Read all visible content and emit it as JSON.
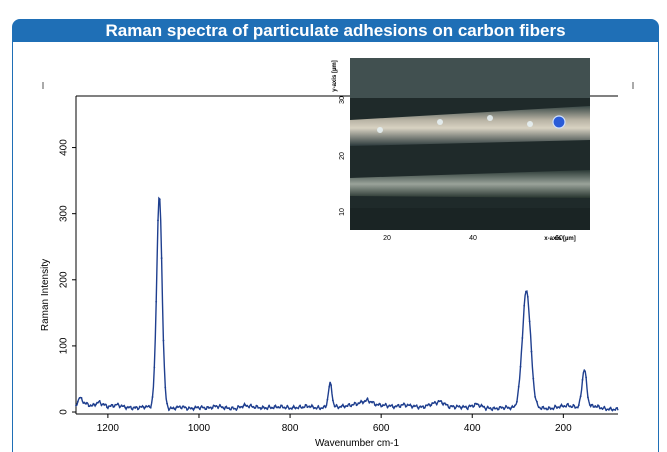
{
  "header": {
    "title": "Raman spectra of particulate adhesions on carbon fibers"
  },
  "colors": {
    "banner": "#1f6fb6",
    "series": "#1f3f8f",
    "axis": "#000000"
  },
  "chart_data": {
    "type": "line",
    "title": "Raman spectra of particulate adhesions on carbon fibers",
    "xlabel": "Wavenumber cm-1",
    "ylabel": "Raman Intensity",
    "xlim": [
      1270,
      80
    ],
    "ylim": [
      -3,
      478
    ],
    "x_reversed": true,
    "xticks": [
      1200,
      1000,
      800,
      600,
      400,
      200
    ],
    "yticks": [
      0,
      100,
      200,
      300,
      400
    ],
    "grid": false,
    "series": [
      {
        "peaks": [
          {
            "center": 1087,
            "height": 320,
            "width": 6
          },
          {
            "center": 281,
            "height": 178,
            "width": 9
          },
          {
            "center": 154,
            "height": 57,
            "width": 5
          },
          {
            "center": 712,
            "height": 36,
            "width": 4
          }
        ],
        "baseline": [
          [
            1270,
            10
          ],
          [
            1262,
            22
          ],
          [
            1250,
            13
          ],
          [
            1235,
            9
          ],
          [
            1220,
            15
          ],
          [
            1200,
            8
          ],
          [
            1180,
            11
          ],
          [
            1160,
            7
          ],
          [
            1140,
            6
          ],
          [
            1120,
            8
          ],
          [
            1060,
            5
          ],
          [
            1040,
            8
          ],
          [
            1020,
            5
          ],
          [
            1000,
            7
          ],
          [
            980,
            6
          ],
          [
            960,
            9
          ],
          [
            940,
            6
          ],
          [
            920,
            5
          ],
          [
            900,
            10
          ],
          [
            880,
            8
          ],
          [
            860,
            6
          ],
          [
            840,
            7
          ],
          [
            820,
            8
          ],
          [
            800,
            6
          ],
          [
            780,
            7
          ],
          [
            760,
            9
          ],
          [
            740,
            6
          ],
          [
            690,
            8
          ],
          [
            670,
            10
          ],
          [
            650,
            13
          ],
          [
            630,
            18
          ],
          [
            610,
            11
          ],
          [
            590,
            10
          ],
          [
            570,
            8
          ],
          [
            550,
            11
          ],
          [
            530,
            9
          ],
          [
            510,
            7
          ],
          [
            490,
            12
          ],
          [
            470,
            16
          ],
          [
            450,
            8
          ],
          [
            430,
            8
          ],
          [
            410,
            7
          ],
          [
            390,
            12
          ],
          [
            370,
            6
          ],
          [
            350,
            5
          ],
          [
            330,
            7
          ],
          [
            310,
            6
          ],
          [
            250,
            6
          ],
          [
            230,
            5
          ],
          [
            210,
            8
          ],
          [
            190,
            10
          ],
          [
            170,
            7
          ],
          [
            130,
            9
          ],
          [
            110,
            5
          ],
          [
            95,
            4
          ],
          [
            80,
            4
          ]
        ]
      }
    ]
  },
  "inset": {
    "xaxis_label": "x-axis [µm]",
    "yaxis_label": "y-axis [µm]",
    "xticks": [
      "20",
      "40",
      "60"
    ],
    "yticks": [
      "10",
      "20",
      "30"
    ],
    "colors": {
      "marker": "#2a5bd7",
      "background": "#1f2a2a"
    }
  }
}
